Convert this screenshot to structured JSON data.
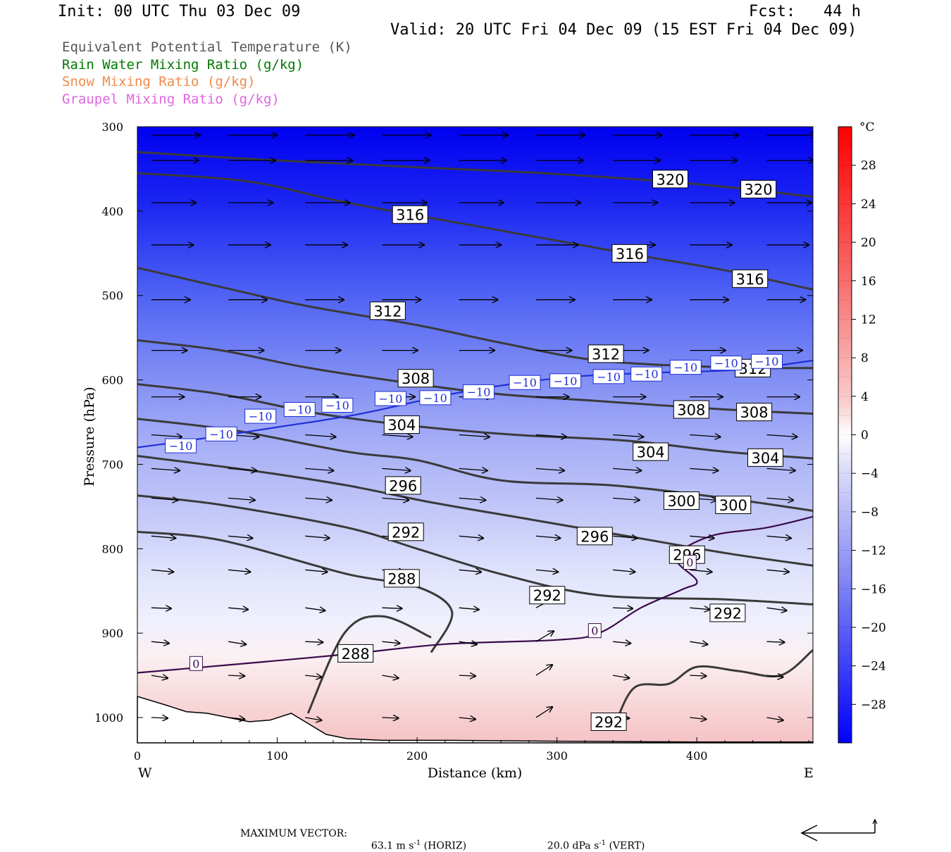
{
  "header": {
    "init": "Init: 00 UTC Thu 03 Dec 09",
    "fcst": "Fcst:   44 h",
    "valid": "Valid: 20 UTC Fri 04 Dec 09 (15 EST Fri 04 Dec 09)"
  },
  "legend": [
    {
      "label": "Equivalent Potential Temperature (K)",
      "color": "#555555"
    },
    {
      "label": "Rain Water Mixing Ratio (g/kg)",
      "color": "#007a00"
    },
    {
      "label": "Snow Mixing Ratio (g/kg)",
      "color": "#f08a4b"
    },
    {
      "label": "Graupel Mixing Ratio (g/kg)",
      "color": "#e066e0"
    }
  ],
  "chart_data": {
    "type": "contour",
    "xlabel": "Distance (km)",
    "ylabel": "Pressure (hPa)",
    "xlim": [
      0,
      483
    ],
    "ylim": [
      1030,
      300
    ],
    "y_scale": "pressure (inverted)",
    "x_ticks": [
      0,
      100,
      200,
      300,
      400
    ],
    "y_ticks": [
      300,
      400,
      500,
      600,
      700,
      800,
      900,
      1000
    ],
    "x_end_labels": {
      "left": "W",
      "right": "E"
    },
    "colorbar": {
      "unit": "°C",
      "ticks": [
        28,
        24,
        20,
        16,
        12,
        8,
        4,
        0,
        -4,
        -8,
        -12,
        -16,
        -20,
        -24,
        -28
      ],
      "range": [
        -32,
        32
      ]
    },
    "theta_e_contours": [
      {
        "value": 320,
        "points": [
          [
            0,
            330
          ],
          [
            100,
            340
          ],
          [
            200,
            348
          ],
          [
            300,
            356
          ],
          [
            400,
            368
          ],
          [
            483,
            383
          ]
        ]
      },
      {
        "value": 316,
        "points": [
          [
            0,
            355
          ],
          [
            80,
            365
          ],
          [
            150,
            390
          ],
          [
            250,
            420
          ],
          [
            350,
            450
          ],
          [
            420,
            470
          ],
          [
            483,
            493
          ]
        ]
      },
      {
        "value": 312,
        "points": [
          [
            0,
            467
          ],
          [
            60,
            490
          ],
          [
            120,
            512
          ],
          [
            200,
            535
          ],
          [
            260,
            556
          ],
          [
            330,
            577
          ],
          [
            420,
            585
          ],
          [
            483,
            586
          ]
        ]
      },
      {
        "value": 308,
        "points": [
          [
            0,
            553
          ],
          [
            60,
            565
          ],
          [
            120,
            585
          ],
          [
            200,
            605
          ],
          [
            260,
            617
          ],
          [
            330,
            625
          ],
          [
            420,
            635
          ],
          [
            483,
            640
          ]
        ]
      },
      {
        "value": 304,
        "points": [
          [
            0,
            605
          ],
          [
            60,
            617
          ],
          [
            130,
            640
          ],
          [
            200,
            655
          ],
          [
            270,
            665
          ],
          [
            350,
            672
          ],
          [
            420,
            685
          ],
          [
            483,
            693
          ]
        ]
      },
      {
        "value": 300,
        "points": [
          [
            0,
            646
          ],
          [
            70,
            660
          ],
          [
            150,
            685
          ],
          [
            200,
            695
          ],
          [
            260,
            719
          ],
          [
            340,
            725
          ],
          [
            420,
            740
          ],
          [
            483,
            755
          ]
        ]
      },
      {
        "value": 296,
        "points": [
          [
            0,
            690
          ],
          [
            80,
            707
          ],
          [
            150,
            725
          ],
          [
            210,
            745
          ],
          [
            280,
            765
          ],
          [
            350,
            785
          ],
          [
            420,
            805
          ],
          [
            483,
            820
          ]
        ]
      },
      {
        "value": 292,
        "points": [
          [
            0,
            737
          ],
          [
            60,
            748
          ],
          [
            150,
            775
          ],
          [
            200,
            800
          ],
          [
            260,
            830
          ],
          [
            330,
            855
          ],
          [
            420,
            860
          ],
          [
            483,
            866
          ]
        ]
      },
      {
        "value": 288,
        "points": [
          [
            0,
            780
          ],
          [
            60,
            790
          ],
          [
            150,
            830
          ],
          [
            200,
            845
          ],
          [
            225,
            875
          ],
          [
            210,
            923
          ]
        ]
      },
      {
        "value": 288,
        "points": [
          [
            122,
            995
          ],
          [
            148,
            900
          ],
          [
            175,
            880
          ],
          [
            210,
            905
          ]
        ]
      },
      {
        "value": 292,
        "points": [
          [
            340,
            1015
          ],
          [
            355,
            965
          ],
          [
            380,
            960
          ],
          [
            400,
            940
          ],
          [
            430,
            945
          ],
          [
            460,
            950
          ],
          [
            483,
            920
          ]
        ]
      }
    ],
    "temperature_contours": [
      {
        "value": -10,
        "points": [
          [
            0,
            680
          ],
          [
            40,
            671
          ],
          [
            100,
            656
          ],
          [
            160,
            640
          ],
          [
            230,
            615
          ],
          [
            300,
            598
          ],
          [
            360,
            592
          ],
          [
            430,
            588
          ],
          [
            483,
            577
          ]
        ]
      },
      {
        "value": 0,
        "points": [
          [
            0,
            947
          ],
          [
            70,
            937
          ],
          [
            150,
            925
          ],
          [
            220,
            913
          ],
          [
            300,
            908
          ],
          [
            330,
            900
          ],
          [
            360,
            870
          ],
          [
            390,
            848
          ],
          [
            400,
            838
          ],
          [
            385,
            810
          ],
          [
            410,
            785
          ],
          [
            450,
            775
          ],
          [
            483,
            762
          ]
        ]
      }
    ],
    "contour_labels": [
      {
        "text": "320",
        "x": 381,
        "y": 362
      },
      {
        "text": "320",
        "x": 444,
        "y": 374
      },
      {
        "text": "316",
        "x": 195,
        "y": 404
      },
      {
        "text": "316",
        "x": 352,
        "y": 450
      },
      {
        "text": "316",
        "x": 438,
        "y": 480
      },
      {
        "text": "312",
        "x": 179,
        "y": 518
      },
      {
        "text": "312",
        "x": 335,
        "y": 569
      },
      {
        "text": "312",
        "x": 440,
        "y": 586
      },
      {
        "text": "308",
        "x": 199,
        "y": 598
      },
      {
        "text": "308",
        "x": 396,
        "y": 635
      },
      {
        "text": "308",
        "x": 441,
        "y": 638
      },
      {
        "text": "304",
        "x": 189,
        "y": 653
      },
      {
        "text": "304",
        "x": 367,
        "y": 685
      },
      {
        "text": "304",
        "x": 449,
        "y": 692
      },
      {
        "text": "300",
        "x": 389,
        "y": 743
      },
      {
        "text": "300",
        "x": 426,
        "y": 748
      },
      {
        "text": "296",
        "x": 190,
        "y": 725
      },
      {
        "text": "296",
        "x": 327,
        "y": 785
      },
      {
        "text": "296",
        "x": 393,
        "y": 807
      },
      {
        "text": "292",
        "x": 192,
        "y": 780
      },
      {
        "text": "292",
        "x": 293,
        "y": 855
      },
      {
        "text": "292",
        "x": 422,
        "y": 876
      },
      {
        "text": "288",
        "x": 189,
        "y": 835
      },
      {
        "text": "288",
        "x": 156,
        "y": 924
      },
      {
        "text": "292",
        "x": 337,
        "y": 1005
      }
    ],
    "temperature_labels": [
      {
        "text": "−10",
        "x": 31,
        "y": 678
      },
      {
        "text": "−10",
        "x": 60,
        "y": 664
      },
      {
        "text": "−10",
        "x": 88,
        "y": 643
      },
      {
        "text": "−10",
        "x": 116,
        "y": 635
      },
      {
        "text": "−10",
        "x": 143,
        "y": 630
      },
      {
        "text": "−10",
        "x": 181,
        "y": 622
      },
      {
        "text": "−10",
        "x": 213,
        "y": 621
      },
      {
        "text": "−10",
        "x": 244,
        "y": 614
      },
      {
        "text": "−10",
        "x": 277,
        "y": 603
      },
      {
        "text": "−10",
        "x": 306,
        "y": 601
      },
      {
        "text": "−10",
        "x": 337,
        "y": 596
      },
      {
        "text": "−10",
        "x": 364,
        "y": 593
      },
      {
        "text": "−10",
        "x": 392,
        "y": 585
      },
      {
        "text": "−10",
        "x": 421,
        "y": 580
      },
      {
        "text": "−10",
        "x": 450,
        "y": 578
      },
      {
        "text": "0",
        "x": 42,
        "y": 936
      },
      {
        "text": "0",
        "x": 327,
        "y": 897
      },
      {
        "text": "0",
        "x": 395,
        "y": 816
      }
    ],
    "wind_vectors_note": "horizontal/vertical circulation vectors along section"
  },
  "footer": {
    "max_vector_label": "MAXIMUM VECTOR:",
    "horiz_value": "63.1",
    "horiz_unit": "m s",
    "horiz_exp": "-1",
    "horiz_tag": "(HORIZ)",
    "vert_value": "20.0",
    "vert_unit": "dPa s",
    "vert_exp": "-1",
    "vert_tag": "(VERT)"
  }
}
